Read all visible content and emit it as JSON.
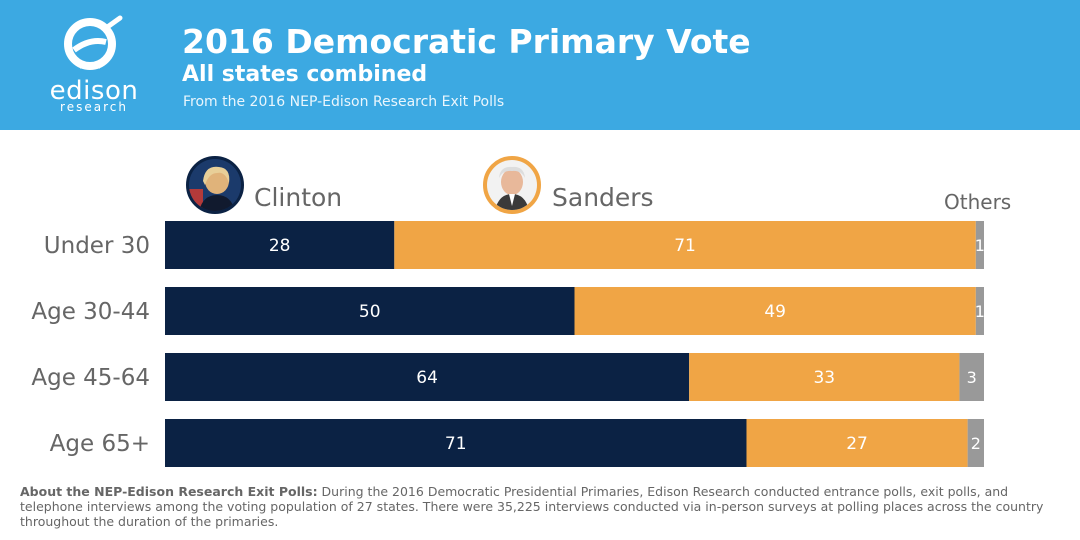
{
  "header": {
    "title": "2016 Democratic Primary Vote",
    "subtitle": "All states combined",
    "source": "From the 2016 NEP-Edison Research Exit Polls",
    "logo_word": "edison",
    "logo_sub": "research"
  },
  "colors": {
    "header_bg": "#3ca9e2",
    "clinton": "#0b2244",
    "sanders": "#f0a545",
    "others": "#999999"
  },
  "chart_data": {
    "type": "bar",
    "orientation": "horizontal",
    "stacked": true,
    "categories": [
      "Under 30",
      "Age 30-44",
      "Age 45-64",
      "Age 65+"
    ],
    "series": [
      {
        "name": "Clinton",
        "values": [
          28,
          50,
          64,
          71
        ]
      },
      {
        "name": "Sanders",
        "values": [
          71,
          49,
          33,
          27
        ]
      },
      {
        "name": "Others",
        "values": [
          1,
          1,
          3,
          2
        ]
      }
    ],
    "xlim": [
      0,
      100
    ],
    "grid": false,
    "legend_placement": "top"
  },
  "footnote": {
    "lead": "About the NEP-Edison Research Exit Polls:",
    "text": " During the 2016 Democratic Presidential Primaries, Edison Research conducted entrance polls, exit polls, and telephone interviews among the voting population of 27 states. There were 35,225 interviews conducted via in-person surveys at polling places across the country throughout the duration of the primaries."
  }
}
